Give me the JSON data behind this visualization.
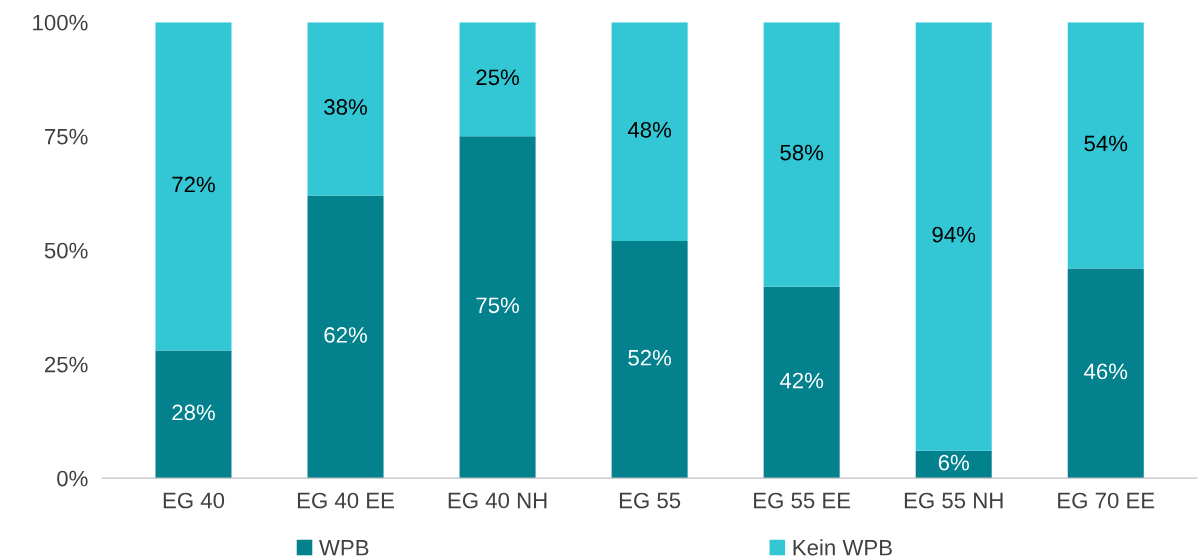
{
  "chart_data": {
    "type": "bar",
    "stacked": true,
    "categories": [
      "EG 40",
      "EG 40 EE",
      "EG 40 NH",
      "EG 55",
      "EG 55 EE",
      "EG 55 NH",
      "EG 70 EE"
    ],
    "series": [
      {
        "name": "WPB",
        "color": "#03818d",
        "values": [
          28,
          62,
          75,
          52,
          42,
          6,
          46
        ],
        "value_labels": [
          "28%",
          "62%",
          "75%",
          "52%",
          "42%",
          "6%",
          "46%"
        ]
      },
      {
        "name": "Kein WPB",
        "color": "#33c6d4",
        "values": [
          72,
          38,
          25,
          48,
          58,
          94,
          54
        ],
        "value_labels": [
          "72%",
          "38%",
          "25%",
          "48%",
          "58%",
          "94%",
          "54%"
        ]
      }
    ],
    "ylim": [
      0,
      100
    ],
    "yticks": [
      {
        "value": 0,
        "label": "0%"
      },
      {
        "value": 25,
        "label": "25%"
      },
      {
        "value": 50,
        "label": "50%"
      },
      {
        "value": 75,
        "label": "75%"
      },
      {
        "value": 100,
        "label": "100%"
      }
    ],
    "grid": false,
    "legend": "bottom"
  }
}
